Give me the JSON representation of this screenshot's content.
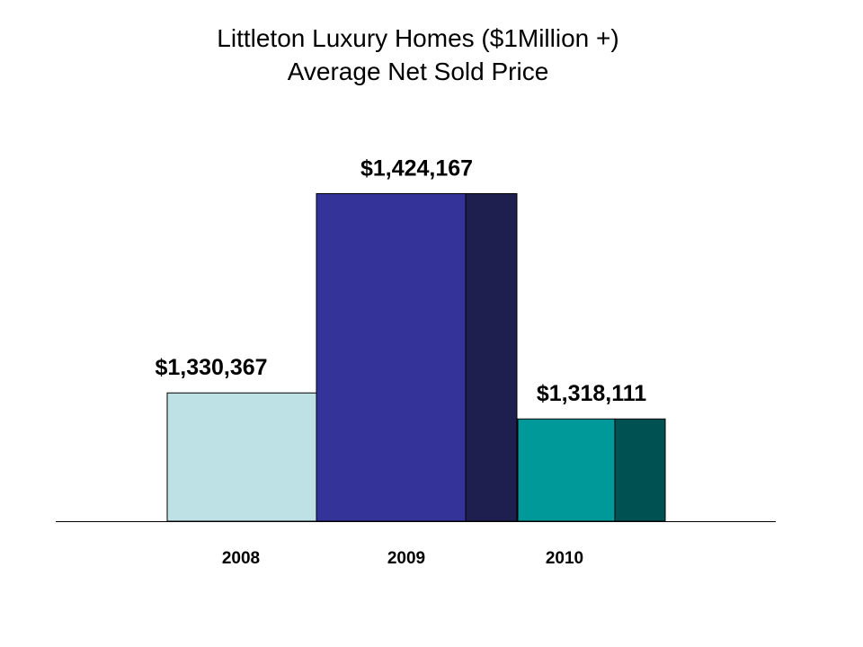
{
  "title": "Littleton Luxury Homes ($1Million +)",
  "subtitle": "Average Net Sold Price",
  "chart_data": {
    "type": "bar",
    "title": "Littleton Luxury Homes ($1Million +)",
    "subtitle": "Average Net Sold Price",
    "categories": [
      "2008",
      "2009",
      "2010"
    ],
    "values": [
      1330367,
      1424167,
      1318111
    ],
    "value_labels": [
      "$1,330,367",
      "$1,424,167",
      "$1,318,111"
    ],
    "colors": [
      "#BDE1E4",
      "#333399",
      "#009999"
    ],
    "side_colors": [
      null,
      "#1F1F4F",
      "#005252"
    ],
    "xlabel": "",
    "ylabel": "",
    "ylim": [
      1270000,
      1440000
    ],
    "grid": false,
    "legend": "none"
  }
}
